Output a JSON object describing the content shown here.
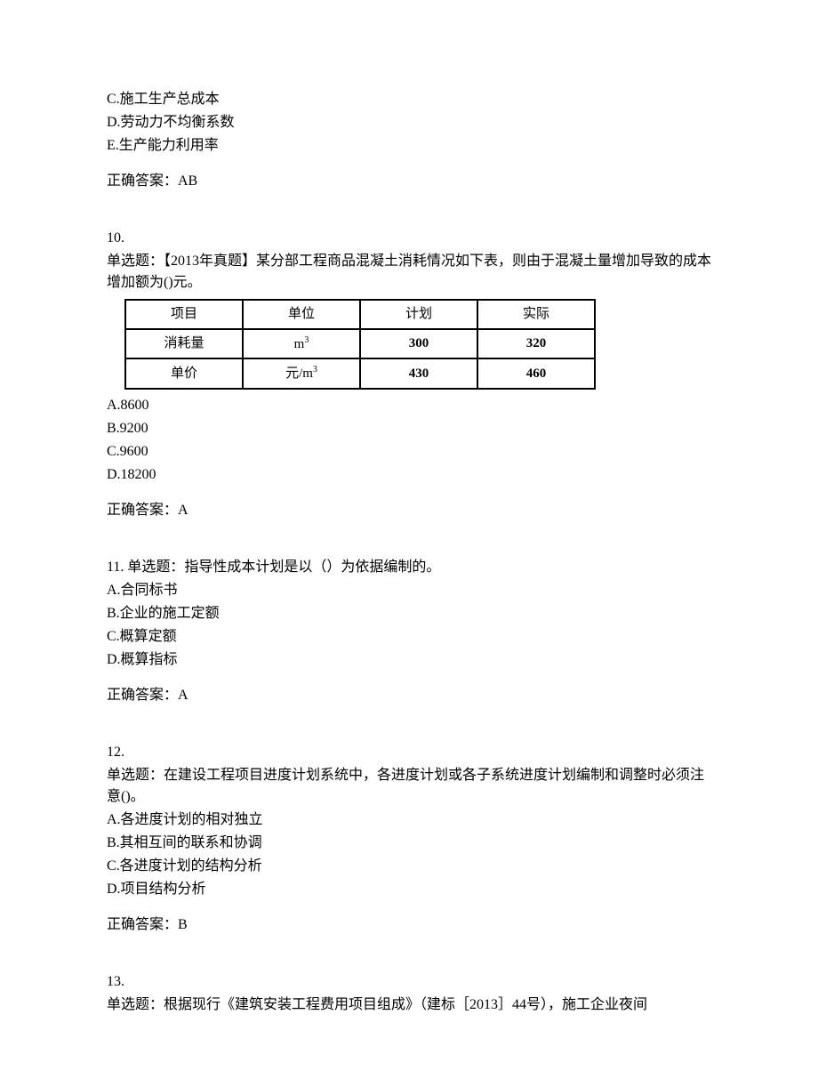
{
  "q9_partial": {
    "optionC": "C.施工生产总成本",
    "optionD": "D.劳动力不均衡系数",
    "optionE": "E.生产能力利用率",
    "answer": "正确答案：AB"
  },
  "q10": {
    "number": "10.",
    "stem": "单选题：【2013年真题】某分部工程商品混凝土消耗情况如下表，则由于混凝土量增加导致的成本增加额为()元。",
    "table": {
      "headers": [
        "项目",
        "单位",
        "计划",
        "实际"
      ],
      "row1_label": "消耗量",
      "row1_unit": "m",
      "row1_unit_sup": "3",
      "row1_plan": "300",
      "row1_actual": "320",
      "row2_label": "单价",
      "row2_unit_prefix": "元/m",
      "row2_unit_sup": "3",
      "row2_plan": "430",
      "row2_actual": "460"
    },
    "optionA": "A.8600",
    "optionB": "B.9200",
    "optionC": "C.9600",
    "optionD": "D.18200",
    "answer": "正确答案：A"
  },
  "q11": {
    "number": "11.",
    "stem": "单选题：指导性成本计划是以（）为依据编制的。",
    "optionA": "A.合同标书",
    "optionB": "B.企业的施工定额",
    "optionC": "C.概算定额",
    "optionD": "D.概算指标",
    "answer": "正确答案：A"
  },
  "q12": {
    "number": "12.",
    "stem": "单选题：在建设工程项目进度计划系统中，各进度计划或各子系统进度计划编制和调整时必须注意()。",
    "optionA": "A.各进度计划的相对独立",
    "optionB": "B.其相互间的联系和协调",
    "optionC": "C.各进度计划的结构分析",
    "optionD": "D.项目结构分析",
    "answer": "正确答案：B"
  },
  "q13": {
    "number": "13.",
    "stem": "单选题：根据现行《建筑安装工程费用项目组成》（建标［2013］44号），施工企业夜间"
  }
}
